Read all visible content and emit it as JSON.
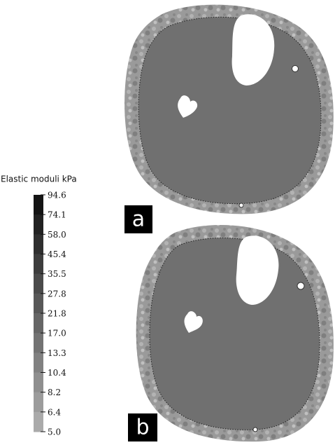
{
  "legend": {
    "title": "Elastic moduli kPa",
    "ticks": [
      "94.6",
      "74.1",
      "58.0",
      "45.4",
      "35.5",
      "27.8",
      "21.8",
      "17.0",
      "13.3",
      "10.4",
      "8.2",
      "6.4",
      "5.0"
    ]
  },
  "panels": [
    {
      "label": "a"
    },
    {
      "label": "b"
    }
  ]
}
